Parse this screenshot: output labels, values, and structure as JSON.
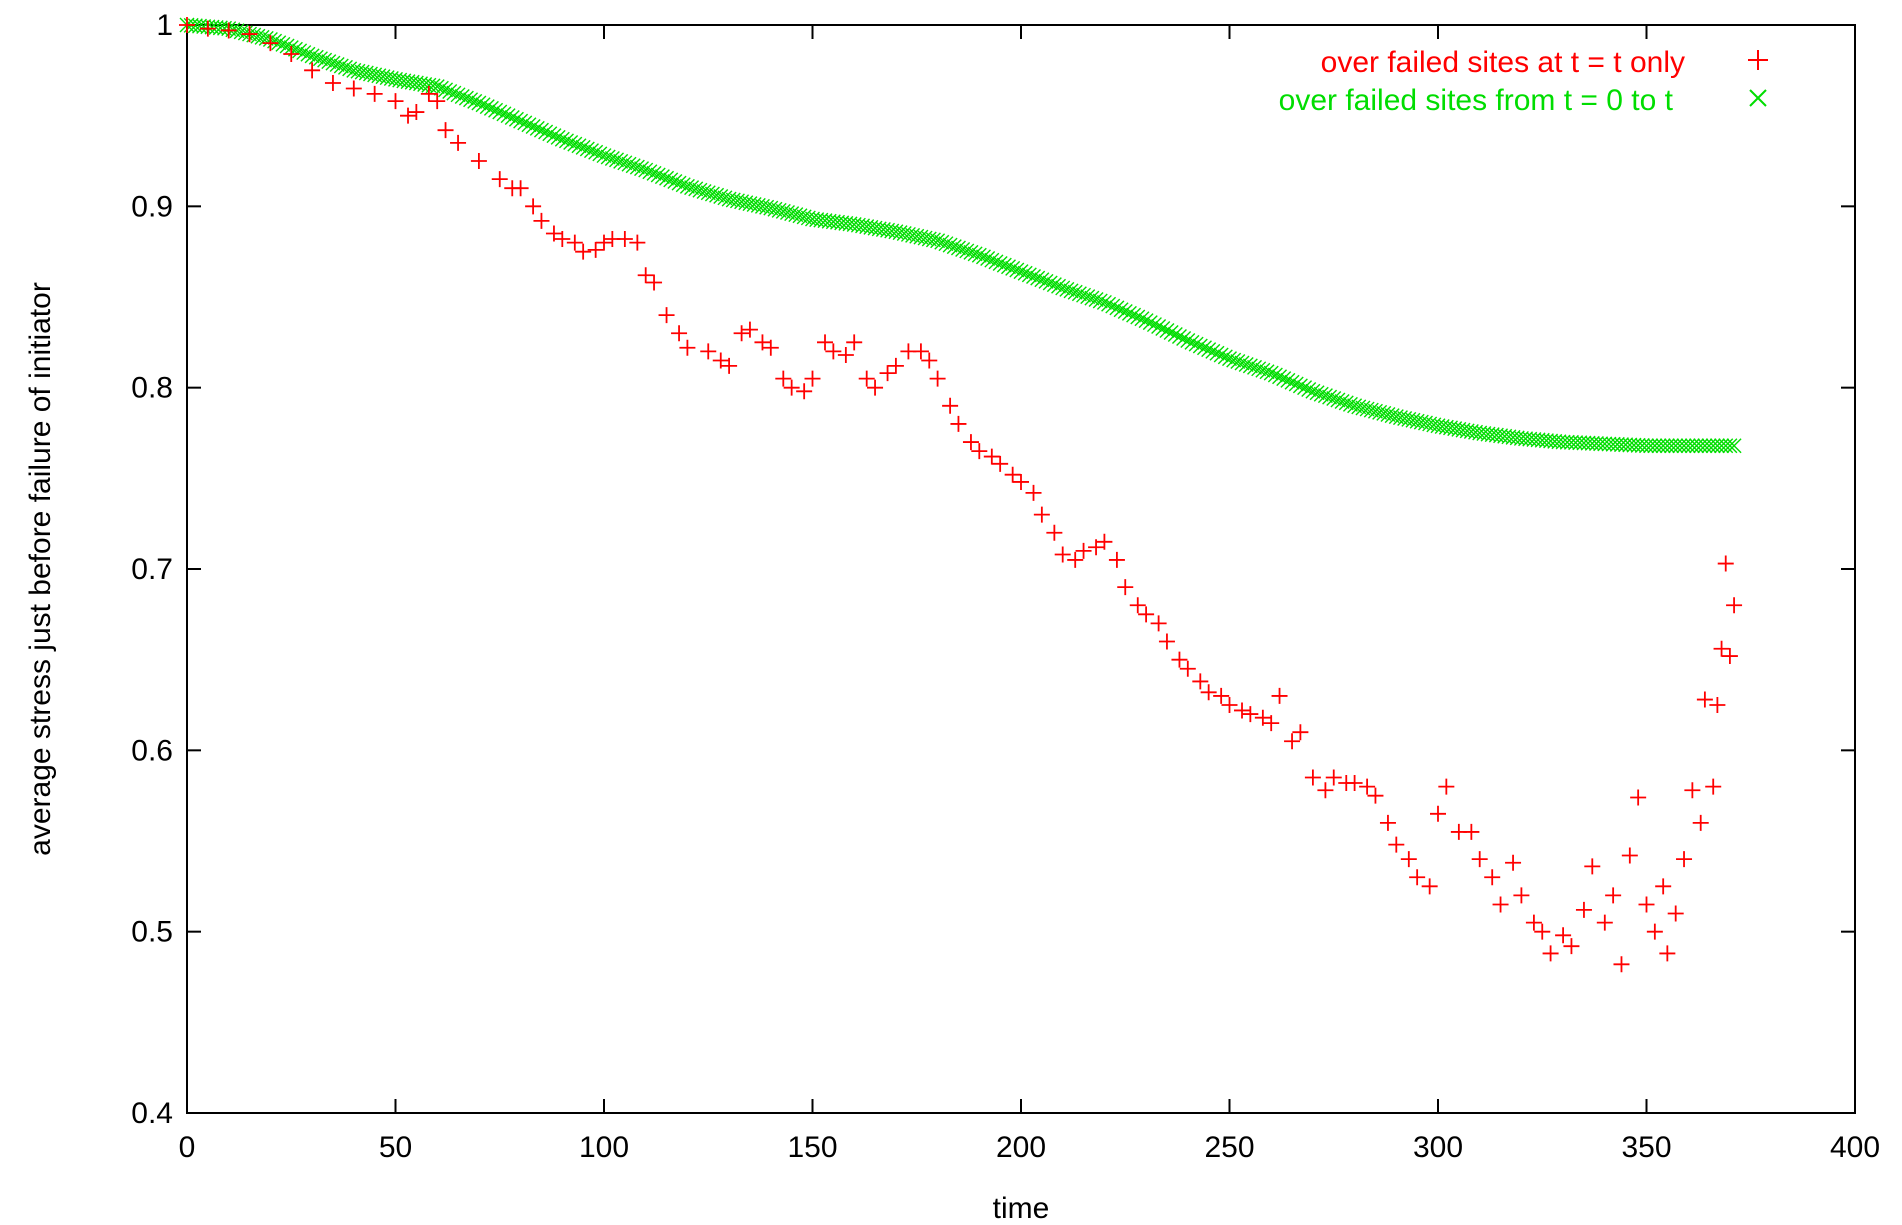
{
  "chart_data": {
    "type": "scatter",
    "title": "",
    "xlabel": "time",
    "ylabel": "average stress just before failure of initiator",
    "xlim": [
      0,
      400
    ],
    "ylim": [
      0.4,
      1
    ],
    "x_ticks": [
      "0",
      "50",
      "100",
      "150",
      "200",
      "250",
      "300",
      "350",
      "400"
    ],
    "y_ticks": [
      "0.4",
      "0.5",
      "0.6",
      "0.7",
      "0.8",
      "0.9",
      "1"
    ],
    "grid": false,
    "legend_position": "top-right",
    "series": [
      {
        "name": "over failed sites at t = t only",
        "marker": "+",
        "color": "#ff0000",
        "points": [
          [
            0,
            1.0
          ],
          [
            5,
            0.998
          ],
          [
            10,
            0.997
          ],
          [
            15,
            0.995
          ],
          [
            20,
            0.99
          ],
          [
            25,
            0.984
          ],
          [
            30,
            0.975
          ],
          [
            35,
            0.968
          ],
          [
            40,
            0.965
          ],
          [
            45,
            0.962
          ],
          [
            50,
            0.958
          ],
          [
            53,
            0.95
          ],
          [
            55,
            0.952
          ],
          [
            58,
            0.962
          ],
          [
            60,
            0.958
          ],
          [
            62,
            0.942
          ],
          [
            65,
            0.935
          ],
          [
            70,
            0.925
          ],
          [
            75,
            0.915
          ],
          [
            78,
            0.91
          ],
          [
            80,
            0.91
          ],
          [
            83,
            0.9
          ],
          [
            85,
            0.892
          ],
          [
            88,
            0.885
          ],
          [
            90,
            0.882
          ],
          [
            93,
            0.88
          ],
          [
            95,
            0.875
          ],
          [
            98,
            0.876
          ],
          [
            100,
            0.88
          ],
          [
            102,
            0.882
          ],
          [
            105,
            0.882
          ],
          [
            108,
            0.88
          ],
          [
            110,
            0.862
          ],
          [
            112,
            0.858
          ],
          [
            115,
            0.84
          ],
          [
            118,
            0.83
          ],
          [
            120,
            0.822
          ],
          [
            125,
            0.82
          ],
          [
            128,
            0.815
          ],
          [
            130,
            0.812
          ],
          [
            133,
            0.83
          ],
          [
            135,
            0.832
          ],
          [
            138,
            0.825
          ],
          [
            140,
            0.822
          ],
          [
            143,
            0.805
          ],
          [
            145,
            0.8
          ],
          [
            148,
            0.798
          ],
          [
            150,
            0.805
          ],
          [
            153,
            0.825
          ],
          [
            155,
            0.82
          ],
          [
            158,
            0.818
          ],
          [
            160,
            0.825
          ],
          [
            163,
            0.805
          ],
          [
            165,
            0.8
          ],
          [
            168,
            0.808
          ],
          [
            170,
            0.812
          ],
          [
            173,
            0.82
          ],
          [
            176,
            0.82
          ],
          [
            178,
            0.815
          ],
          [
            180,
            0.805
          ],
          [
            183,
            0.79
          ],
          [
            185,
            0.78
          ],
          [
            188,
            0.77
          ],
          [
            190,
            0.765
          ],
          [
            193,
            0.762
          ],
          [
            195,
            0.758
          ],
          [
            198,
            0.752
          ],
          [
            200,
            0.748
          ],
          [
            203,
            0.742
          ],
          [
            205,
            0.73
          ],
          [
            208,
            0.72
          ],
          [
            210,
            0.708
          ],
          [
            213,
            0.705
          ],
          [
            215,
            0.71
          ],
          [
            218,
            0.712
          ],
          [
            220,
            0.715
          ],
          [
            223,
            0.705
          ],
          [
            225,
            0.69
          ],
          [
            228,
            0.68
          ],
          [
            230,
            0.675
          ],
          [
            233,
            0.67
          ],
          [
            235,
            0.66
          ],
          [
            238,
            0.65
          ],
          [
            240,
            0.645
          ],
          [
            243,
            0.638
          ],
          [
            245,
            0.632
          ],
          [
            248,
            0.63
          ],
          [
            250,
            0.625
          ],
          [
            253,
            0.622
          ],
          [
            255,
            0.62
          ],
          [
            258,
            0.618
          ],
          [
            260,
            0.615
          ],
          [
            262,
            0.63
          ],
          [
            265,
            0.605
          ],
          [
            267,
            0.61
          ],
          [
            270,
            0.585
          ],
          [
            273,
            0.578
          ],
          [
            275,
            0.585
          ],
          [
            278,
            0.582
          ],
          [
            280,
            0.582
          ],
          [
            283,
            0.58
          ],
          [
            285,
            0.575
          ],
          [
            288,
            0.56
          ],
          [
            290,
            0.548
          ],
          [
            293,
            0.54
          ],
          [
            295,
            0.53
          ],
          [
            298,
            0.525
          ],
          [
            300,
            0.565
          ],
          [
            302,
            0.58
          ],
          [
            305,
            0.555
          ],
          [
            308,
            0.555
          ],
          [
            310,
            0.54
          ],
          [
            313,
            0.53
          ],
          [
            315,
            0.515
          ],
          [
            318,
            0.538
          ],
          [
            320,
            0.52
          ],
          [
            323,
            0.505
          ],
          [
            325,
            0.5
          ],
          [
            327,
            0.488
          ],
          [
            330,
            0.498
          ],
          [
            332,
            0.492
          ],
          [
            335,
            0.512
          ],
          [
            337,
            0.536
          ],
          [
            340,
            0.505
          ],
          [
            342,
            0.52
          ],
          [
            344,
            0.482
          ],
          [
            346,
            0.542
          ],
          [
            348,
            0.574
          ],
          [
            350,
            0.515
          ],
          [
            352,
            0.5
          ],
          [
            354,
            0.525
          ],
          [
            355,
            0.488
          ],
          [
            357,
            0.51
          ],
          [
            359,
            0.54
          ],
          [
            361,
            0.578
          ],
          [
            363,
            0.56
          ],
          [
            364,
            0.628
          ],
          [
            366,
            0.58
          ],
          [
            367,
            0.625
          ],
          [
            368,
            0.656
          ],
          [
            369,
            0.703
          ],
          [
            370,
            0.652
          ],
          [
            371,
            0.68
          ]
        ]
      },
      {
        "name": "over failed sites from t = 0 to t",
        "marker": "x",
        "color": "#00dd00",
        "points": [
          [
            0,
            1.0
          ],
          [
            10,
            0.998
          ],
          [
            20,
            0.992
          ],
          [
            30,
            0.983
          ],
          [
            40,
            0.975
          ],
          [
            50,
            0.97
          ],
          [
            60,
            0.966
          ],
          [
            70,
            0.957
          ],
          [
            80,
            0.947
          ],
          [
            90,
            0.937
          ],
          [
            100,
            0.928
          ],
          [
            110,
            0.92
          ],
          [
            120,
            0.911
          ],
          [
            130,
            0.904
          ],
          [
            140,
            0.899
          ],
          [
            150,
            0.893
          ],
          [
            160,
            0.89
          ],
          [
            170,
            0.886
          ],
          [
            180,
            0.881
          ],
          [
            190,
            0.873
          ],
          [
            200,
            0.864
          ],
          [
            210,
            0.855
          ],
          [
            220,
            0.847
          ],
          [
            230,
            0.837
          ],
          [
            240,
            0.826
          ],
          [
            250,
            0.816
          ],
          [
            260,
            0.808
          ],
          [
            270,
            0.798
          ],
          [
            280,
            0.79
          ],
          [
            290,
            0.784
          ],
          [
            300,
            0.779
          ],
          [
            310,
            0.775
          ],
          [
            320,
            0.772
          ],
          [
            330,
            0.77
          ],
          [
            340,
            0.769
          ],
          [
            350,
            0.768
          ],
          [
            360,
            0.768
          ],
          [
            371,
            0.768
          ]
        ]
      }
    ]
  }
}
